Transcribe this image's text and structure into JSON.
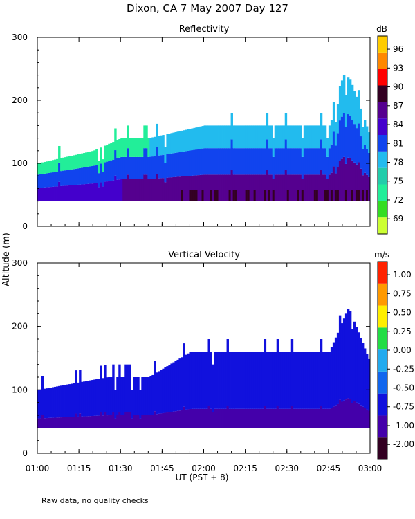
{
  "title": "Dixon, CA  7 May 2007  Day 127",
  "footnote": "Raw data, no quality checks",
  "colors": {
    "reflectivity": [
      "#ccff33",
      "#33dd22",
      "#22ee99",
      "#22ccaa",
      "#22bbee",
      "#1144ee",
      "#4400cc",
      "#55008f",
      "#330022",
      "#ff0000",
      "#ff8800",
      "#ffcc00"
    ],
    "velocity": [
      "#330022",
      "#4400aa",
      "#1111dd",
      "#1166ee",
      "#22aaee",
      "#22dd44",
      "#ffee00",
      "#ff9900",
      "#ff2200"
    ]
  },
  "chart_data": [
    {
      "type": "heatmap",
      "title": "Reflectivity",
      "xlabel": "UT  (PST + 8)",
      "ylabel": "Altitude (m)",
      "xlim": [
        "01:00",
        "03:00"
      ],
      "x_ticks": [
        "01:00",
        "01:15",
        "01:30",
        "01:45",
        "02:00",
        "02:15",
        "02:30",
        "02:45",
        "03:00"
      ],
      "ylim": [
        0,
        300
      ],
      "y_ticks": [
        0,
        100,
        200,
        300
      ],
      "colorbar_unit": "dB",
      "colorbar_ticks": [
        "69",
        "72",
        "75",
        "78",
        "81",
        "84",
        "87",
        "90",
        "93",
        "96"
      ],
      "data_altitude_base_m": 40,
      "echo_top_series": [
        {
          "time": "01:00",
          "top_m": 100
        },
        {
          "time": "01:10",
          "top_m": 110
        },
        {
          "time": "01:20",
          "top_m": 120
        },
        {
          "time": "01:30",
          "top_m": 140
        },
        {
          "time": "01:40",
          "top_m": 140
        },
        {
          "time": "01:50",
          "top_m": 150
        },
        {
          "time": "02:00",
          "top_m": 160
        },
        {
          "time": "02:15",
          "top_m": 160
        },
        {
          "time": "02:30",
          "top_m": 160
        },
        {
          "time": "02:45",
          "top_m": 160
        },
        {
          "time": "02:52",
          "top_m": 240
        },
        {
          "time": "03:00",
          "top_m": 140
        }
      ]
    },
    {
      "type": "heatmap",
      "title": "Vertical Velocity",
      "xlabel": "UT  (PST + 8)",
      "ylabel": "Altitude (m)",
      "xlim": [
        "01:00",
        "03:00"
      ],
      "x_ticks": [
        "01:00",
        "01:15",
        "01:30",
        "01:45",
        "02:00",
        "02:15",
        "02:30",
        "02:45",
        "03:00"
      ],
      "ylim": [
        0,
        300
      ],
      "y_ticks": [
        0,
        100,
        200,
        300
      ],
      "colorbar_unit": "m/s",
      "colorbar_ticks": [
        "-2.00",
        "-1.00",
        "-0.75",
        "-0.50",
        "-0.25",
        "0.00",
        "0.25",
        "0.50",
        "0.75",
        "1.00"
      ],
      "data_altitude_base_m": 40,
      "echo_top_series": [
        {
          "time": "01:00",
          "top_m": 100
        },
        {
          "time": "01:25",
          "top_m": 120
        },
        {
          "time": "01:40",
          "top_m": 120
        },
        {
          "time": "01:55",
          "top_m": 160
        },
        {
          "time": "02:15",
          "top_m": 160
        },
        {
          "time": "02:30",
          "top_m": 160
        },
        {
          "time": "02:45",
          "top_m": 160
        },
        {
          "time": "02:52",
          "top_m": 230
        },
        {
          "time": "03:00",
          "top_m": 140
        }
      ]
    }
  ]
}
